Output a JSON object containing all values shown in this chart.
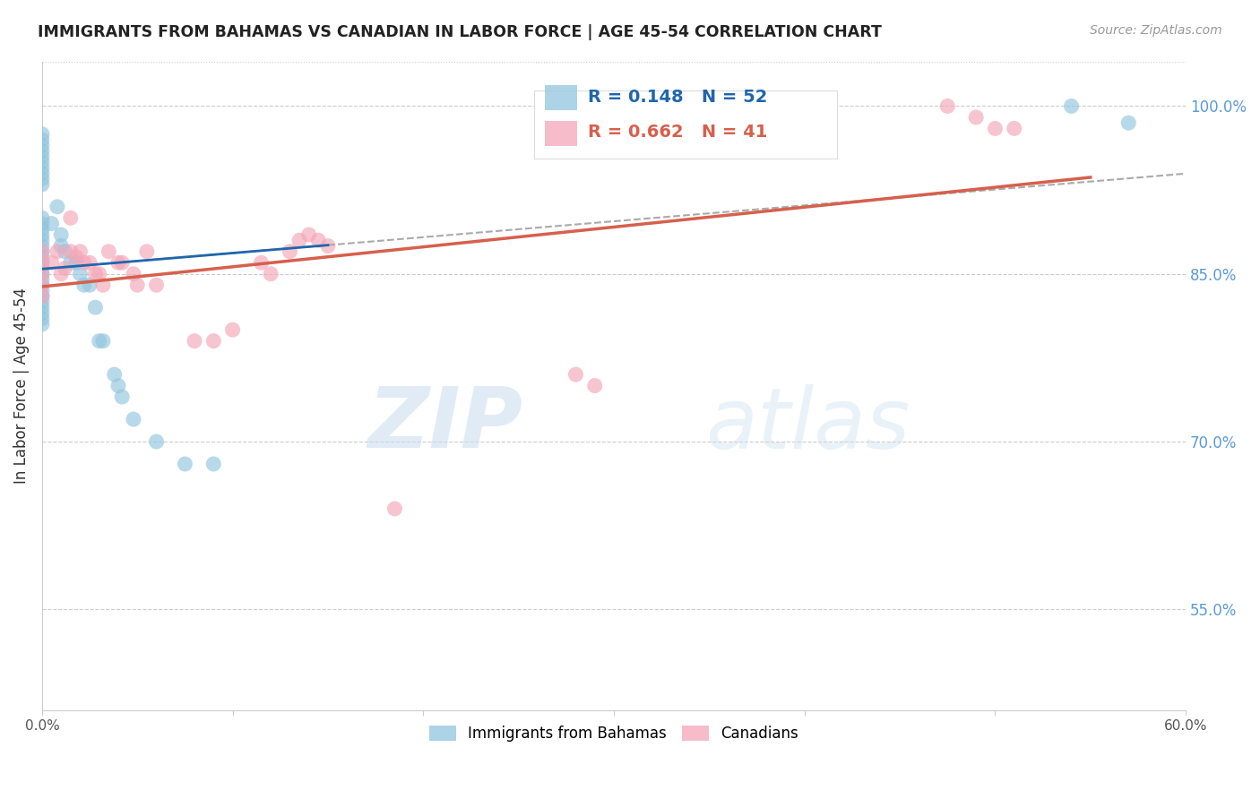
{
  "title": "IMMIGRANTS FROM BAHAMAS VS CANADIAN IN LABOR FORCE | AGE 45-54 CORRELATION CHART",
  "source": "Source: ZipAtlas.com",
  "ylabel": "In Labor Force | Age 45-54",
  "right_yticks": [
    0.55,
    0.7,
    0.85,
    1.0
  ],
  "right_yticklabels": [
    "55.0%",
    "70.0%",
    "85.0%",
    "100.0%"
  ],
  "xlim": [
    0.0,
    0.6
  ],
  "ylim": [
    0.46,
    1.04
  ],
  "legend_blue_R": "0.148",
  "legend_blue_N": "52",
  "legend_pink_R": "0.662",
  "legend_pink_N": "41",
  "watermark_zip": "ZIP",
  "watermark_atlas": "atlas",
  "blue_color": "#92c5de",
  "blue_line_color": "#2166ac",
  "blue_dash_color": "#aaaaaa",
  "pink_color": "#f4a6b8",
  "pink_line_color": "#d6604d",
  "blue_scatter_x": [
    0.0,
    0.0,
    0.0,
    0.0,
    0.0,
    0.0,
    0.0,
    0.0,
    0.0,
    0.0,
    0.0,
    0.0,
    0.0,
    0.0,
    0.0,
    0.0,
    0.0,
    0.0,
    0.0,
    0.0,
    0.0,
    0.0,
    0.0,
    0.0,
    0.0,
    0.0,
    0.0,
    0.0,
    0.0,
    0.0,
    0.005,
    0.008,
    0.01,
    0.01,
    0.012,
    0.015,
    0.018,
    0.02,
    0.022,
    0.025,
    0.028,
    0.03,
    0.032,
    0.038,
    0.04,
    0.042,
    0.048,
    0.06,
    0.075,
    0.09,
    0.54,
    0.57
  ],
  "blue_scatter_y": [
    0.975,
    0.97,
    0.965,
    0.96,
    0.955,
    0.95,
    0.945,
    0.94,
    0.935,
    0.93,
    0.9,
    0.895,
    0.89,
    0.885,
    0.88,
    0.875,
    0.87,
    0.865,
    0.86,
    0.855,
    0.85,
    0.845,
    0.84,
    0.835,
    0.83,
    0.825,
    0.82,
    0.815,
    0.81,
    0.805,
    0.895,
    0.91,
    0.885,
    0.875,
    0.87,
    0.86,
    0.86,
    0.85,
    0.84,
    0.84,
    0.82,
    0.79,
    0.79,
    0.76,
    0.75,
    0.74,
    0.72,
    0.7,
    0.68,
    0.68,
    1.0,
    0.985
  ],
  "pink_scatter_x": [
    0.0,
    0.0,
    0.0,
    0.0,
    0.0,
    0.005,
    0.008,
    0.01,
    0.012,
    0.015,
    0.015,
    0.018,
    0.02,
    0.022,
    0.025,
    0.028,
    0.03,
    0.032,
    0.035,
    0.04,
    0.042,
    0.048,
    0.05,
    0.055,
    0.06,
    0.08,
    0.09,
    0.1,
    0.115,
    0.12,
    0.13,
    0.135,
    0.14,
    0.145,
    0.15,
    0.28,
    0.29,
    0.475,
    0.49,
    0.5,
    0.51
  ],
  "pink_scatter_y": [
    0.87,
    0.86,
    0.85,
    0.84,
    0.83,
    0.86,
    0.87,
    0.85,
    0.855,
    0.9,
    0.87,
    0.865,
    0.87,
    0.86,
    0.86,
    0.85,
    0.85,
    0.84,
    0.87,
    0.86,
    0.86,
    0.85,
    0.84,
    0.87,
    0.84,
    0.79,
    0.79,
    0.8,
    0.86,
    0.85,
    0.87,
    0.88,
    0.885,
    0.88,
    0.875,
    0.76,
    0.75,
    1.0,
    0.99,
    0.98,
    0.98
  ],
  "pink_outlier_x": [
    0.185
  ],
  "pink_outlier_y": [
    0.64
  ],
  "grid_color": "#cccccc",
  "background_color": "#ffffff"
}
